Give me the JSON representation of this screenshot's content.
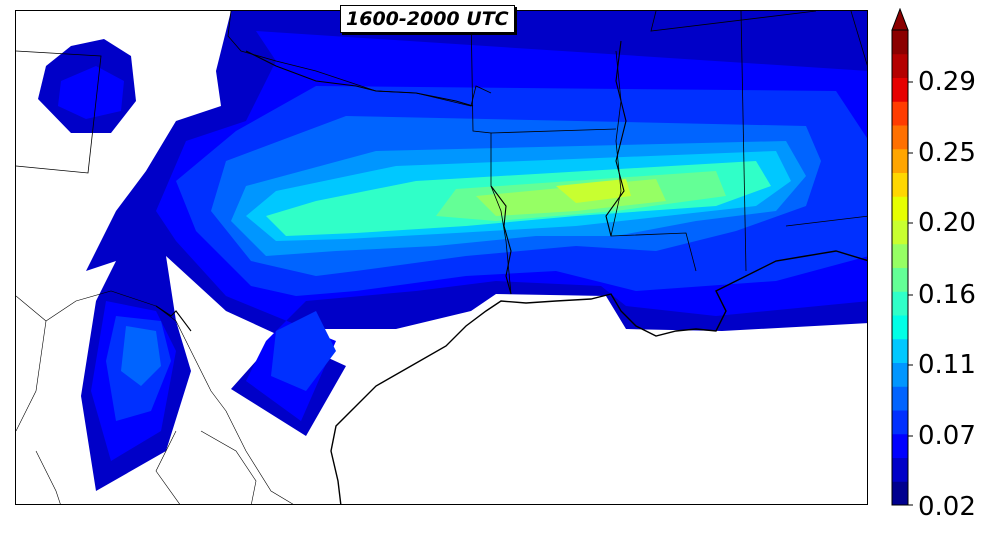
{
  "title": "1600-2000 UTC",
  "colorbar": {
    "tick_labels": [
      "0.29",
      "0.25",
      "0.20",
      "0.16",
      "0.11",
      "0.07",
      "0.02"
    ],
    "min": 0.02,
    "max": 0.31,
    "extend": "max",
    "colors": [
      "#00008f",
      "#0000c8",
      "#0000ff",
      "#0030ff",
      "#0064ff",
      "#0096ff",
      "#00c8ff",
      "#00ffe6",
      "#30ffc8",
      "#64ff96",
      "#96ff64",
      "#c8ff30",
      "#e6ff00",
      "#ffd700",
      "#ffa500",
      "#ff7000",
      "#ff3c00",
      "#e60000",
      "#b40000",
      "#8b0000"
    ]
  },
  "colors": {
    "low": "#0000c8",
    "mid": "#00c8ff",
    "high_core": "#c8ff30",
    "coastline": "#000000",
    "background": "#ffffff"
  }
}
